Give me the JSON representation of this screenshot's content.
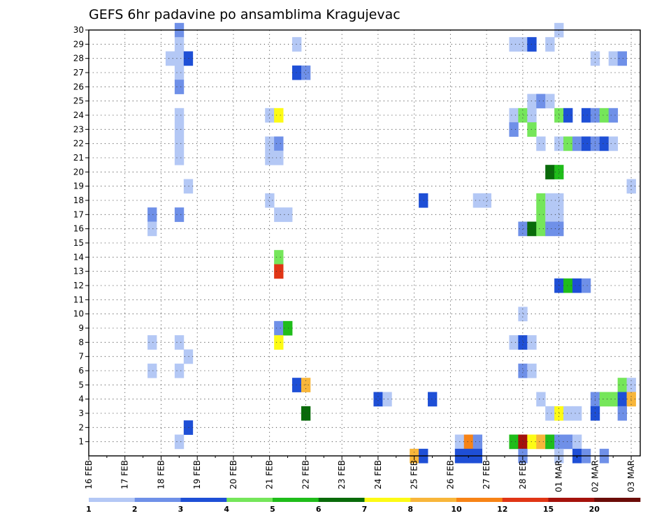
{
  "chart_data": {
    "type": "heatmap",
    "title": "GEFS 6hr padavine po ansamblima Kragujevac",
    "xlabel": "",
    "ylabel": "",
    "x_unit": "days since 16 FEB 00Z",
    "xlim": [
      0,
      15.25
    ],
    "ylim": [
      0,
      30
    ],
    "y_ticks": [
      1,
      2,
      3,
      4,
      5,
      6,
      7,
      8,
      9,
      10,
      11,
      12,
      13,
      14,
      15,
      16,
      17,
      18,
      19,
      20,
      21,
      22,
      23,
      24,
      25,
      26,
      27,
      28,
      29,
      30
    ],
    "x_ticks": [
      "16 FEB",
      "17 FEB",
      "18 FEB",
      "19 FEB",
      "20 FEB",
      "21 FEB",
      "22 FEB",
      "23 FEB",
      "24 FEB",
      "25 FEB",
      "26 FEB",
      "27 FEB",
      "28 FEB",
      "01 MAR",
      "02 MAR",
      "03 MAR"
    ],
    "colorbar": {
      "labels": [
        "1",
        "2",
        "3",
        "4",
        "5",
        "6",
        "7",
        "8",
        "10",
        "12",
        "15",
        "20"
      ],
      "colors": [
        "#b4c8f5",
        "#6f90e8",
        "#1e4fd6",
        "#75e65a",
        "#1fbd1a",
        "#096b0a",
        "#fdfb15",
        "#f8b63a",
        "#f78316",
        "#e03515",
        "#a5120c",
        "#6b0c08"
      ]
    },
    "cells": [
      {
        "t": 2.5,
        "m": 30,
        "c": 1
      },
      {
        "t": 2.5,
        "m": 29,
        "c": 0
      },
      {
        "t": 2.25,
        "m": 28,
        "c": 0
      },
      {
        "t": 2.5,
        "m": 28,
        "c": 0
      },
      {
        "t": 2.75,
        "m": 28,
        "c": 2
      },
      {
        "t": 2.5,
        "m": 27,
        "c": 0
      },
      {
        "t": 2.5,
        "m": 26,
        "c": 1
      },
      {
        "t": 2.5,
        "m": 24,
        "c": 0
      },
      {
        "t": 2.5,
        "m": 23,
        "c": 0
      },
      {
        "t": 2.5,
        "m": 22,
        "c": 0
      },
      {
        "t": 2.5,
        "m": 21,
        "c": 0
      },
      {
        "t": 2.75,
        "m": 19,
        "c": 0
      },
      {
        "t": 1.75,
        "m": 17,
        "c": 1
      },
      {
        "t": 2.5,
        "m": 17,
        "c": 1
      },
      {
        "t": 1.75,
        "m": 16,
        "c": 0
      },
      {
        "t": 1.75,
        "m": 8,
        "c": 0
      },
      {
        "t": 2.5,
        "m": 8,
        "c": 0
      },
      {
        "t": 2.75,
        "m": 7,
        "c": 0
      },
      {
        "t": 1.75,
        "m": 6,
        "c": 0
      },
      {
        "t": 2.5,
        "m": 6,
        "c": 0
      },
      {
        "t": 2.75,
        "m": 2,
        "c": 2
      },
      {
        "t": 2.5,
        "m": 1,
        "c": 0
      },
      {
        "t": 5.0,
        "m": 24,
        "c": 0
      },
      {
        "t": 5.25,
        "m": 24,
        "c": 6
      },
      {
        "t": 5.0,
        "m": 22,
        "c": 0
      },
      {
        "t": 5.25,
        "m": 22,
        "c": 1
      },
      {
        "t": 5.0,
        "m": 21,
        "c": 0
      },
      {
        "t": 5.25,
        "m": 21,
        "c": 0
      },
      {
        "t": 5.0,
        "m": 18,
        "c": 0
      },
      {
        "t": 5.25,
        "m": 17,
        "c": 0
      },
      {
        "t": 5.5,
        "m": 17,
        "c": 0
      },
      {
        "t": 5.25,
        "m": 14,
        "c": 3
      },
      {
        "t": 5.25,
        "m": 13,
        "c": 9
      },
      {
        "t": 5.25,
        "m": 9,
        "c": 1
      },
      {
        "t": 5.5,
        "m": 9,
        "c": 4
      },
      {
        "t": 5.25,
        "m": 8,
        "c": 6
      },
      {
        "t": 5.75,
        "m": 29,
        "c": 0
      },
      {
        "t": 5.75,
        "m": 27,
        "c": 2
      },
      {
        "t": 6.0,
        "m": 27,
        "c": 1
      },
      {
        "t": 5.75,
        "m": 5,
        "c": 2
      },
      {
        "t": 6.0,
        "m": 5,
        "c": 7
      },
      {
        "t": 6.0,
        "m": 3,
        "c": 5
      },
      {
        "t": 8.0,
        "m": 4,
        "c": 2
      },
      {
        "t": 8.25,
        "m": 4,
        "c": 0
      },
      {
        "t": 9.0,
        "m": 0,
        "c": 7
      },
      {
        "t": 9.25,
        "m": 0,
        "c": 2
      },
      {
        "t": 9.25,
        "m": 18,
        "c": 2
      },
      {
        "t": 9.5,
        "m": 4,
        "c": 2
      },
      {
        "t": 10.25,
        "m": 1,
        "c": 0
      },
      {
        "t": 10.5,
        "m": 1,
        "c": 8
      },
      {
        "t": 10.75,
        "m": 1,
        "c": 1
      },
      {
        "t": 10.25,
        "m": 0,
        "c": 2
      },
      {
        "t": 10.5,
        "m": 0,
        "c": 2
      },
      {
        "t": 10.75,
        "m": 0,
        "c": 2
      },
      {
        "t": 10.75,
        "m": 18,
        "c": 0
      },
      {
        "t": 11.0,
        "m": 18,
        "c": 0
      },
      {
        "t": 11.75,
        "m": 29,
        "c": 0
      },
      {
        "t": 12.0,
        "m": 29,
        "c": 0
      },
      {
        "t": 12.25,
        "m": 29,
        "c": 2
      },
      {
        "t": 12.75,
        "m": 29,
        "c": 0
      },
      {
        "t": 13.0,
        "m": 30,
        "c": 0
      },
      {
        "t": 12.25,
        "m": 25,
        "c": 0
      },
      {
        "t": 12.5,
        "m": 25,
        "c": 1
      },
      {
        "t": 12.75,
        "m": 25,
        "c": 0
      },
      {
        "t": 11.75,
        "m": 24,
        "c": 0
      },
      {
        "t": 12.0,
        "m": 24,
        "c": 3
      },
      {
        "t": 12.25,
        "m": 24,
        "c": 0
      },
      {
        "t": 13.0,
        "m": 24,
        "c": 3
      },
      {
        "t": 13.25,
        "m": 24,
        "c": 2
      },
      {
        "t": 13.75,
        "m": 24,
        "c": 2
      },
      {
        "t": 14.0,
        "m": 24,
        "c": 1
      },
      {
        "t": 14.25,
        "m": 24,
        "c": 3
      },
      {
        "t": 14.5,
        "m": 24,
        "c": 1
      },
      {
        "t": 11.75,
        "m": 23,
        "c": 1
      },
      {
        "t": 12.25,
        "m": 23,
        "c": 3
      },
      {
        "t": 12.5,
        "m": 22,
        "c": 0
      },
      {
        "t": 13.0,
        "m": 22,
        "c": 0
      },
      {
        "t": 13.25,
        "m": 22,
        "c": 3
      },
      {
        "t": 13.5,
        "m": 22,
        "c": 1
      },
      {
        "t": 13.75,
        "m": 22,
        "c": 2
      },
      {
        "t": 14.0,
        "m": 22,
        "c": 1
      },
      {
        "t": 14.25,
        "m": 22,
        "c": 2
      },
      {
        "t": 14.5,
        "m": 22,
        "c": 0
      },
      {
        "t": 12.75,
        "m": 20,
        "c": 5
      },
      {
        "t": 13.0,
        "m": 20,
        "c": 4
      },
      {
        "t": 15.0,
        "m": 19,
        "c": 0
      },
      {
        "t": 12.5,
        "m": 18,
        "c": 3
      },
      {
        "t": 12.75,
        "m": 18,
        "c": 0
      },
      {
        "t": 13.0,
        "m": 18,
        "c": 0
      },
      {
        "t": 12.5,
        "m": 17,
        "c": 3
      },
      {
        "t": 12.75,
        "m": 17,
        "c": 0
      },
      {
        "t": 13.0,
        "m": 17,
        "c": 0
      },
      {
        "t": 12.0,
        "m": 16,
        "c": 1
      },
      {
        "t": 12.25,
        "m": 16,
        "c": 5
      },
      {
        "t": 12.5,
        "m": 16,
        "c": 3
      },
      {
        "t": 12.75,
        "m": 16,
        "c": 1
      },
      {
        "t": 13.0,
        "m": 16,
        "c": 1
      },
      {
        "t": 13.0,
        "m": 12,
        "c": 2
      },
      {
        "t": 13.25,
        "m": 12,
        "c": 4
      },
      {
        "t": 13.5,
        "m": 12,
        "c": 2
      },
      {
        "t": 13.75,
        "m": 12,
        "c": 1
      },
      {
        "t": 12.0,
        "m": 10,
        "c": 0
      },
      {
        "t": 11.75,
        "m": 8,
        "c": 0
      },
      {
        "t": 12.0,
        "m": 8,
        "c": 2
      },
      {
        "t": 12.25,
        "m": 8,
        "c": 0
      },
      {
        "t": 12.0,
        "m": 6,
        "c": 1
      },
      {
        "t": 12.25,
        "m": 6,
        "c": 0
      },
      {
        "t": 14.75,
        "m": 5,
        "c": 3
      },
      {
        "t": 15.0,
        "m": 5,
        "c": 0
      },
      {
        "t": 12.5,
        "m": 4,
        "c": 0
      },
      {
        "t": 14.0,
        "m": 4,
        "c": 1
      },
      {
        "t": 14.25,
        "m": 4,
        "c": 3
      },
      {
        "t": 14.5,
        "m": 4,
        "c": 3
      },
      {
        "t": 14.75,
        "m": 4,
        "c": 2
      },
      {
        "t": 15.0,
        "m": 4,
        "c": 7
      },
      {
        "t": 12.75,
        "m": 3,
        "c": 0
      },
      {
        "t": 13.0,
        "m": 3,
        "c": 6
      },
      {
        "t": 13.25,
        "m": 3,
        "c": 0
      },
      {
        "t": 13.5,
        "m": 3,
        "c": 0
      },
      {
        "t": 14.0,
        "m": 3,
        "c": 2
      },
      {
        "t": 14.75,
        "m": 3,
        "c": 1
      },
      {
        "t": 11.75,
        "m": 1,
        "c": 4
      },
      {
        "t": 12.0,
        "m": 1,
        "c": 10
      },
      {
        "t": 12.25,
        "m": 1,
        "c": 6
      },
      {
        "t": 12.5,
        "m": 1,
        "c": 7
      },
      {
        "t": 12.75,
        "m": 1,
        "c": 4
      },
      {
        "t": 13.0,
        "m": 1,
        "c": 1
      },
      {
        "t": 13.25,
        "m": 1,
        "c": 1
      },
      {
        "t": 13.5,
        "m": 1,
        "c": 0
      },
      {
        "t": 12.0,
        "m": 0,
        "c": 1
      },
      {
        "t": 13.0,
        "m": 0,
        "c": 0
      },
      {
        "t": 13.5,
        "m": 0,
        "c": 2
      },
      {
        "t": 13.75,
        "m": 0,
        "c": 1
      },
      {
        "t": 14.25,
        "m": 0,
        "c": 1
      },
      {
        "t": 14.0,
        "m": 28,
        "c": 0
      },
      {
        "t": 14.5,
        "m": 28,
        "c": 0
      },
      {
        "t": 14.75,
        "m": 28,
        "c": 1
      }
    ]
  }
}
